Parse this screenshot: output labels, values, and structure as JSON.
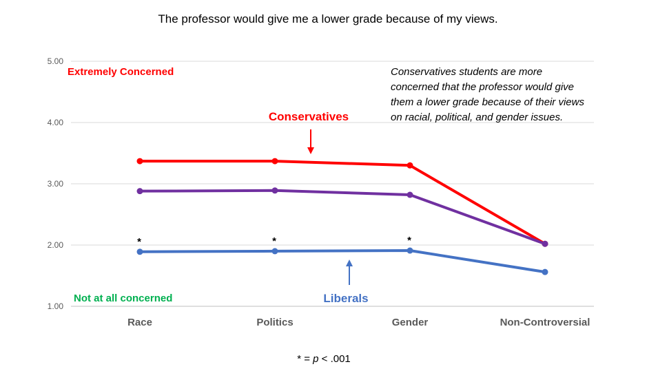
{
  "chart_data": {
    "type": "line",
    "title": "The professor would give me a lower grade because of my views.",
    "categories": [
      "Race",
      "Politics",
      "Gender",
      "Non-Controversial"
    ],
    "ylim": [
      1,
      5
    ],
    "yticks": [
      "1.00",
      "2.00",
      "3.00",
      "4.00",
      "5.00"
    ],
    "grid": true,
    "series": [
      {
        "key": "conservatives",
        "color": "#ff0000",
        "values": [
          3.37,
          3.37,
          3.3,
          2.02
        ]
      },
      {
        "key": "overall",
        "color": "#7030a0",
        "values": [
          2.88,
          2.89,
          2.82,
          2.02
        ]
      },
      {
        "key": "liberals",
        "color": "#4472c4",
        "values": [
          1.89,
          1.9,
          1.91,
          1.56
        ]
      }
    ],
    "significance_markers": [
      {
        "category": "Race",
        "text": "*"
      },
      {
        "category": "Politics",
        "text": "*"
      },
      {
        "category": "Gender",
        "text": "*"
      }
    ],
    "annotations": {
      "extremely_concerned": {
        "text": "Extremely Concerned",
        "color": "#ff0000"
      },
      "not_at_all_concerned": {
        "text": "Not at all concerned",
        "color": "#00b050"
      },
      "conservatives_label": {
        "text": "Conservatives",
        "color": "#ff0000"
      },
      "liberals_label": {
        "text": "Liberals",
        "color": "#4472c4"
      },
      "note_lines": [
        "Conservatives students are more",
        "concerned that the professor would give",
        "them a lower grade because of their views",
        "on racial, political, and gender issues."
      ]
    },
    "footnote": {
      "prefix": "* = ",
      "p": "p",
      "suffix": " < .001"
    }
  }
}
